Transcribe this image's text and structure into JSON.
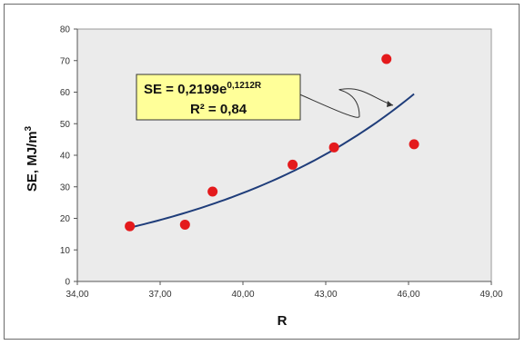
{
  "chart_data": {
    "type": "scatter",
    "title": "",
    "xlabel": "R",
    "ylabel": "SE, MJ/m",
    "ylabel_superscript": "3",
    "xlim": [
      34,
      49
    ],
    "ylim": [
      0,
      80
    ],
    "x_ticks": [
      "34,00",
      "37,00",
      "40,00",
      "43,00",
      "46,00",
      "49,00"
    ],
    "y_ticks": [
      "0",
      "10",
      "20",
      "30",
      "40",
      "50",
      "60",
      "70",
      "80"
    ],
    "grid": false,
    "points": [
      {
        "x": 35.9,
        "y": 17.5
      },
      {
        "x": 37.9,
        "y": 18.0
      },
      {
        "x": 38.9,
        "y": 28.5
      },
      {
        "x": 41.8,
        "y": 37.0
      },
      {
        "x": 43.3,
        "y": 42.5
      },
      {
        "x": 45.2,
        "y": 70.5
      },
      {
        "x": 46.2,
        "y": 43.5
      }
    ],
    "trendline": {
      "type": "exponential",
      "a": 0.2199,
      "b": 0.1212,
      "x_range": [
        35.9,
        46.2
      ]
    },
    "annotation": {
      "equation_prefix": "SE = 0,2199e",
      "equation_exponent": "0,1212R",
      "r_squared": "R² = 0,84"
    },
    "colors": {
      "points": "#e41a1c",
      "trendline": "#1f3d7a",
      "plot_area": "#ebebeb",
      "annotation_fill": "#ffff99"
    }
  }
}
